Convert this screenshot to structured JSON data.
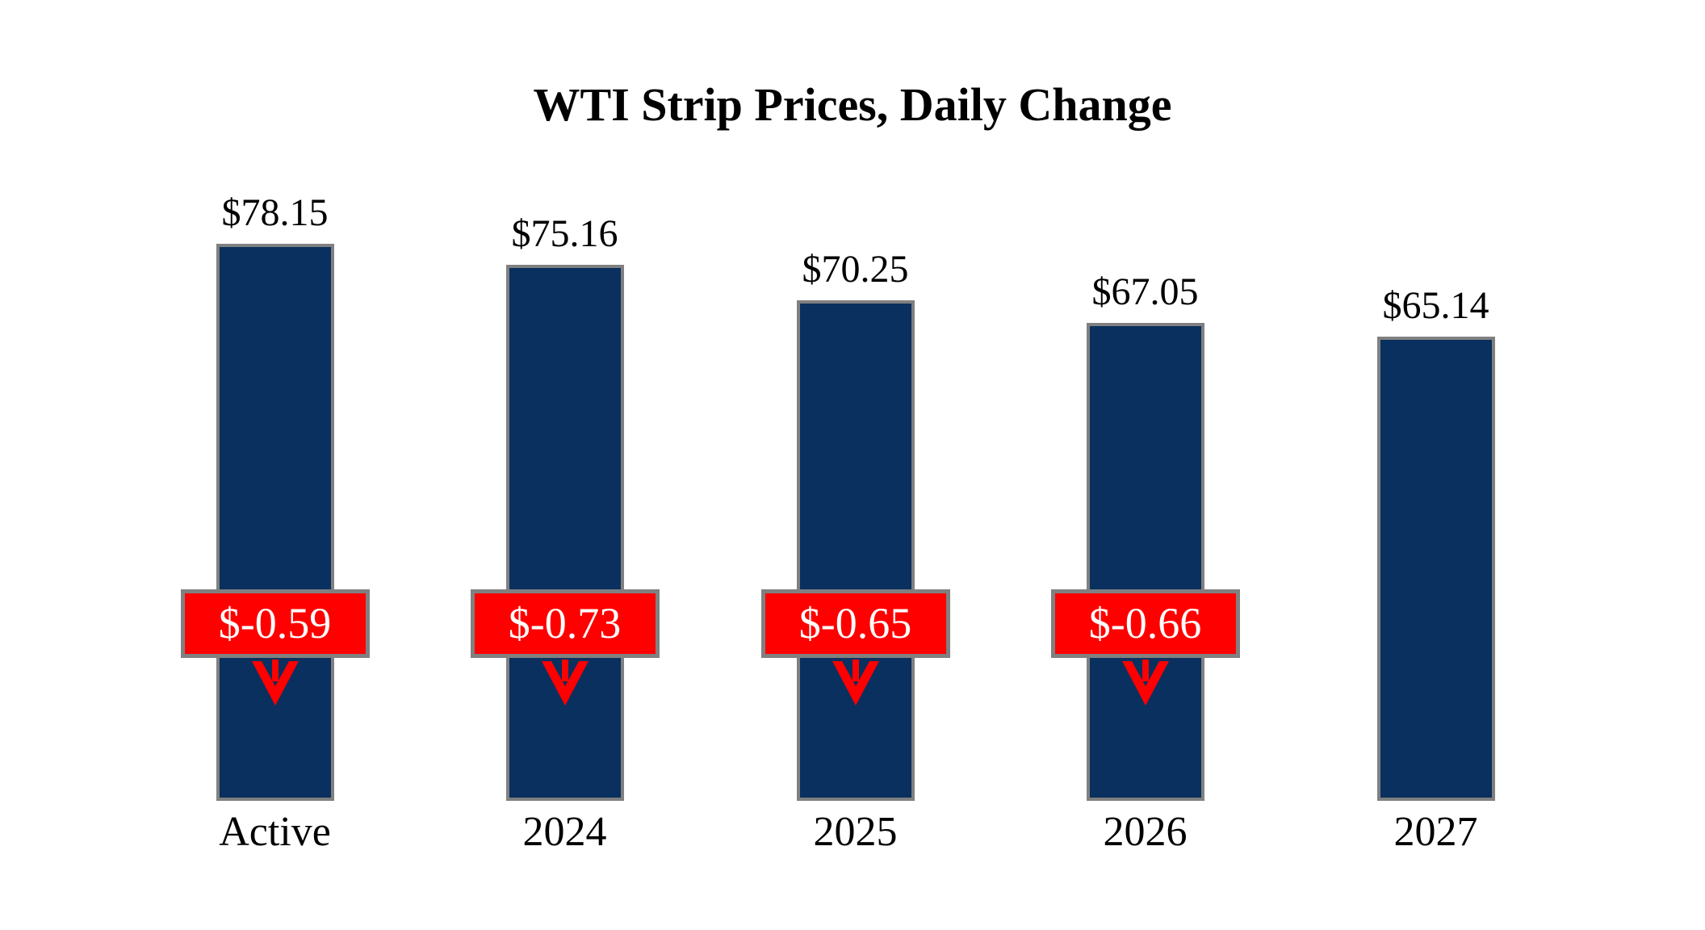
{
  "chart_data": {
    "type": "bar",
    "title": "WTI Strip Prices, Daily Change",
    "categories": [
      "Active",
      "2024",
      "2025",
      "2026",
      "2027"
    ],
    "values": [
      78.15,
      75.16,
      70.25,
      67.05,
      65.14
    ],
    "bars": [
      {
        "category": "Active",
        "price": 78.15,
        "price_label": "$78.15",
        "change": -0.59,
        "change_label": "$-0.59"
      },
      {
        "category": "2024",
        "price": 75.16,
        "price_label": "$75.16",
        "change": -0.73,
        "change_label": "$-0.73"
      },
      {
        "category": "2025",
        "price": 70.25,
        "price_label": "$70.25",
        "change": -0.65,
        "change_label": "$-0.65"
      },
      {
        "category": "2026",
        "price": 67.05,
        "price_label": "$67.05",
        "change": -0.66,
        "change_label": "$-0.66"
      },
      {
        "category": "2027",
        "price": 65.14,
        "price_label": "$65.14",
        "change": null,
        "change_label": null
      }
    ],
    "xlabel": "",
    "ylabel": "",
    "ylim": [
      0,
      112.4
    ],
    "grid": false,
    "legend": "none",
    "axes_hidden": true,
    "colors": {
      "bar_fill": "#09305E",
      "bar_border": "#808080",
      "change_badge_fill": "#FF0000",
      "change_badge_border": "#808080",
      "change_badge_text": "#FFFFFF",
      "arrow": "#FF0000",
      "label_text": "#000000"
    }
  }
}
